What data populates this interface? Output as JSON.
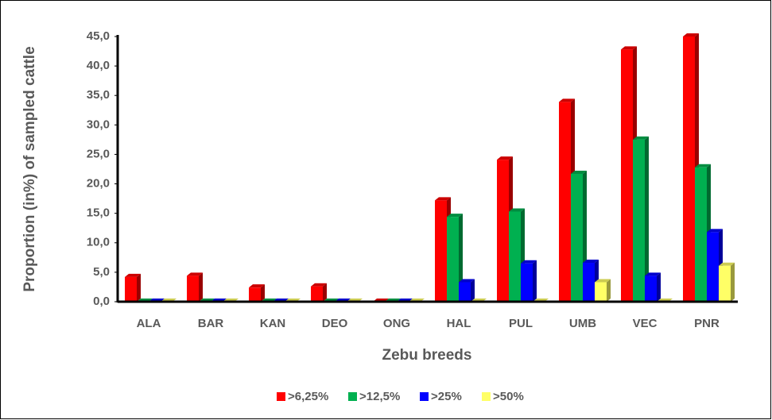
{
  "chart_data": {
    "type": "bar",
    "xlabel": "Zebu breeds",
    "ylabel": "Proportion (in%) of  sampled cattle",
    "categories": [
      "ALA",
      "BAR",
      "KAN",
      "DEO",
      "ONG",
      "HAL",
      "PUL",
      "UMB",
      "VEC",
      "PNR"
    ],
    "series": [
      {
        "name": ">6,25%",
        "color": "#ff0000",
        "values": [
          4.2,
          4.4,
          2.4,
          2.6,
          0,
          17.2,
          24.1,
          33.9,
          42.8,
          45.0
        ]
      },
      {
        "name": ">12,5%",
        "color": "#00b050",
        "values": [
          0,
          0,
          0,
          0,
          0,
          14.4,
          15.3,
          21.7,
          27.5,
          22.8
        ]
      },
      {
        "name": ">25%",
        "color": "#0000ff",
        "values": [
          0,
          0,
          0,
          0,
          0,
          3.3,
          6.5,
          6.6,
          4.4,
          11.8
        ]
      },
      {
        "name": ">50%",
        "color": "#ffff66",
        "values": [
          0,
          0,
          0,
          0,
          0,
          0,
          0,
          3.3,
          0,
          6.1
        ]
      }
    ],
    "ylim": [
      0,
      45
    ],
    "yticks": [
      {
        "value": 0,
        "label": "0,0"
      },
      {
        "value": 5,
        "label": "5,0"
      },
      {
        "value": 10,
        "label": "10,0"
      },
      {
        "value": 15,
        "label": "15,0"
      },
      {
        "value": 20,
        "label": "20,0"
      },
      {
        "value": 25,
        "label": "25,0"
      },
      {
        "value": 30,
        "label": "30,0"
      },
      {
        "value": 35,
        "label": "35,0"
      },
      {
        "value": 40,
        "label": "40,0"
      },
      {
        "value": 45,
        "label": "45,0"
      }
    ],
    "legend": "bottom"
  }
}
